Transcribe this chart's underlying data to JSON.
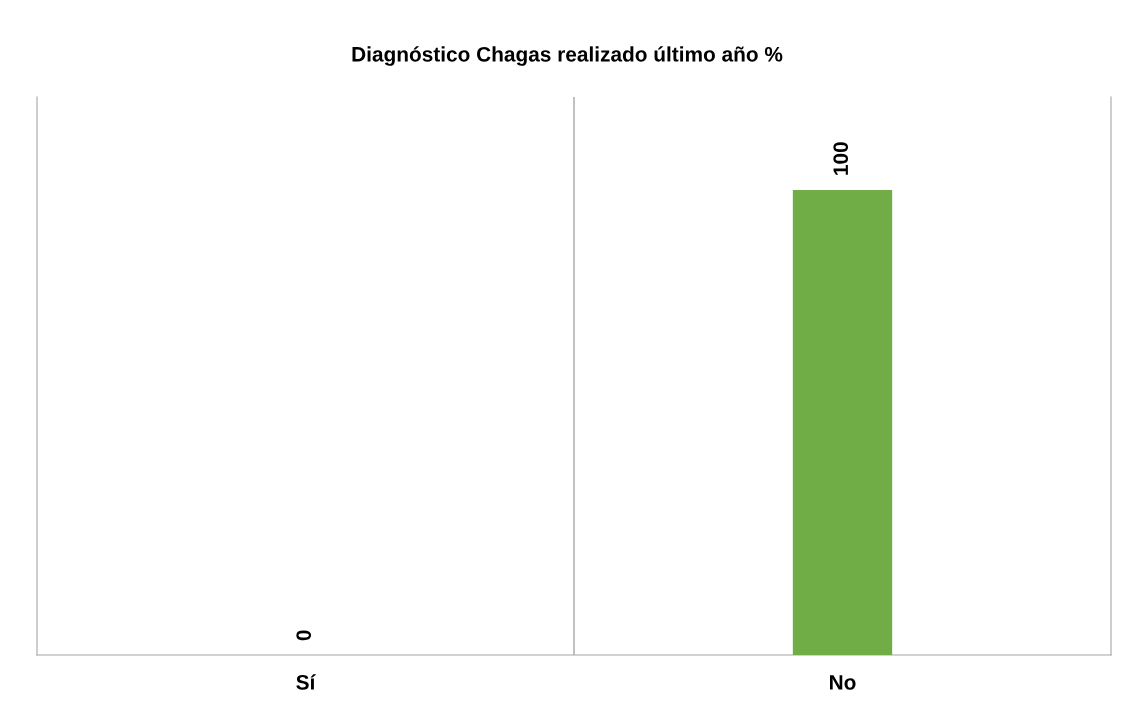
{
  "chart_data": {
    "type": "bar",
    "title": "Diagnóstico Chagas realizado último año %",
    "categories": [
      "Sí",
      "No"
    ],
    "values": [
      0,
      100
    ],
    "color": "#70ad47",
    "ylim": [
      0,
      120
    ],
    "data_labels": true,
    "grid": "x",
    "tick_labels": "x"
  }
}
